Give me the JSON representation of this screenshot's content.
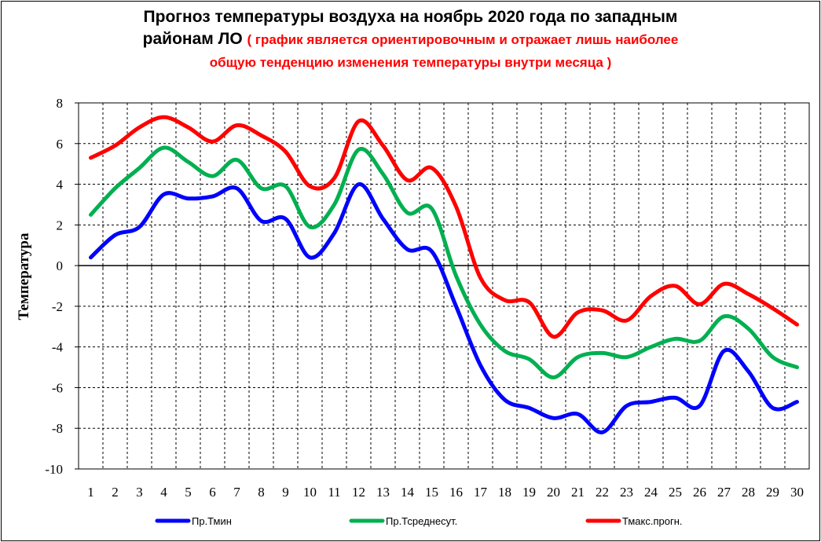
{
  "title": {
    "line1": "Прогноз температуры воздуха на ноябрь 2020 года по западным",
    "line2_black": "районам ЛО",
    "line2_red": "( график является ориентировочным и отражает лишь наиболее",
    "line3_red": "общую тенденцию изменения температуры внутри месяца )"
  },
  "chart_data": {
    "type": "line",
    "title": "Прогноз температуры воздуха на ноябрь 2020 года по западным районам ЛО",
    "subtitle": "( график является ориентировочным и отражает лишь наиболее общую тенденцию изменения температуры внутри месяца )",
    "xlabel": "",
    "ylabel": "Температура",
    "ylim": [
      -10,
      8
    ],
    "yticks": [
      "8",
      "6",
      "4",
      "2",
      "0",
      "-2",
      "-4",
      "-6",
      "-8",
      "-10"
    ],
    "x": [
      1,
      2,
      3,
      4,
      5,
      6,
      7,
      8,
      9,
      10,
      11,
      12,
      13,
      14,
      15,
      16,
      17,
      18,
      19,
      20,
      21,
      22,
      23,
      24,
      25,
      26,
      27,
      28,
      29,
      30
    ],
    "grid": true,
    "legend_position": "bottom",
    "series": [
      {
        "name": "Пр.Тмин",
        "color": "#0000ff",
        "values": [
          0.4,
          1.5,
          1.9,
          3.5,
          3.3,
          3.4,
          3.8,
          2.2,
          2.3,
          0.4,
          1.6,
          4.0,
          2.3,
          0.8,
          0.7,
          -2.0,
          -4.9,
          -6.6,
          -7.0,
          -7.5,
          -7.3,
          -8.2,
          -6.9,
          -6.7,
          -6.5,
          -6.9,
          -4.2,
          -5.2,
          -7.0,
          -6.7
        ]
      },
      {
        "name": "Пр.Тсреднесут.",
        "color": "#00b050",
        "values": [
          2.5,
          3.8,
          4.8,
          5.8,
          5.1,
          4.4,
          5.2,
          3.8,
          3.9,
          1.9,
          3.0,
          5.7,
          4.5,
          2.6,
          2.8,
          -0.5,
          -2.9,
          -4.2,
          -4.6,
          -5.5,
          -4.5,
          -4.3,
          -4.5,
          -4.0,
          -3.6,
          -3.7,
          -2.5,
          -3.1,
          -4.5,
          -5.0
        ]
      },
      {
        "name": "Тмакс.прогн.",
        "color": "#ff0000",
        "values": [
          5.3,
          5.9,
          6.8,
          7.3,
          6.8,
          6.1,
          6.9,
          6.4,
          5.6,
          3.9,
          4.3,
          7.1,
          5.9,
          4.2,
          4.8,
          2.9,
          -0.6,
          -1.7,
          -1.8,
          -3.5,
          -2.3,
          -2.2,
          -2.7,
          -1.5,
          -1.0,
          -1.9,
          -0.9,
          -1.4,
          -2.1,
          -2.9
        ]
      }
    ]
  }
}
